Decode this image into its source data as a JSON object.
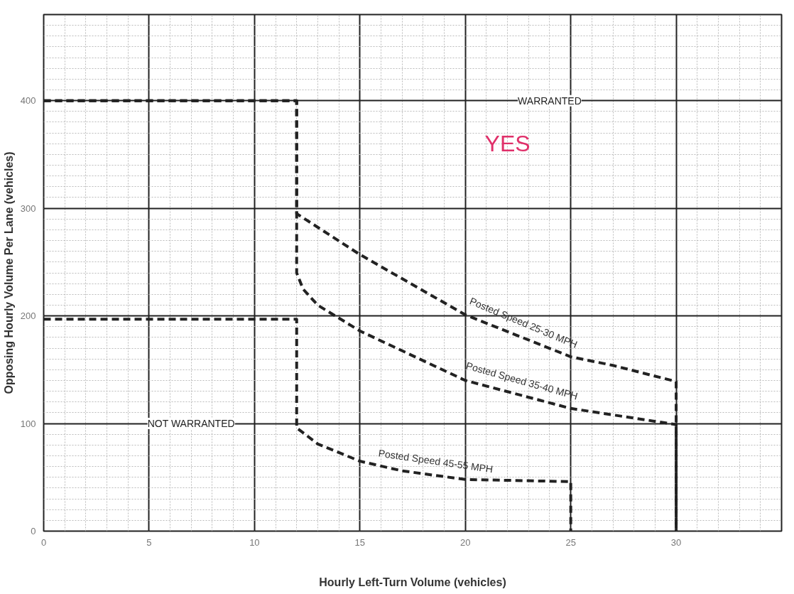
{
  "chart_data": {
    "type": "line",
    "xlabel": "Hourly Left-Turn Volume (vehicles)",
    "ylabel": "Opposing Hourly Volume Per Lane (vehicles)",
    "xlim": [
      0,
      35
    ],
    "ylim": [
      0,
      480
    ],
    "xticks": [
      0,
      5,
      10,
      15,
      20,
      25,
      30
    ],
    "yticks": [
      0,
      100,
      200,
      300,
      400
    ],
    "grid": true,
    "line_style": "dashed",
    "marker": "none",
    "series": [
      {
        "name": "Posted Speed 25-30 MPH",
        "color": "#222222",
        "x": [
          0,
          12,
          12,
          15,
          20,
          25,
          27,
          30,
          30
        ],
        "values": [
          400,
          400,
          295,
          257,
          201,
          162,
          154,
          139,
          0
        ]
      },
      {
        "name": "Posted Speed 35-40 MPH",
        "color": "#222222",
        "x": [
          0,
          12,
          12,
          12.3,
          13,
          15,
          20,
          25,
          30,
          30
        ],
        "values": [
          400,
          400,
          240,
          225,
          210,
          186,
          140,
          114,
          99,
          0
        ]
      },
      {
        "name": "Posted Speed 45-55 MPH",
        "color": "#222222",
        "x": [
          0,
          12,
          12,
          13,
          15,
          17,
          20,
          25,
          25
        ],
        "values": [
          197,
          197,
          96,
          81,
          65,
          56,
          48,
          46,
          0
        ]
      }
    ],
    "annotations": [
      "WARRANTED",
      "NOT WARRANTED",
      "YES"
    ]
  }
}
